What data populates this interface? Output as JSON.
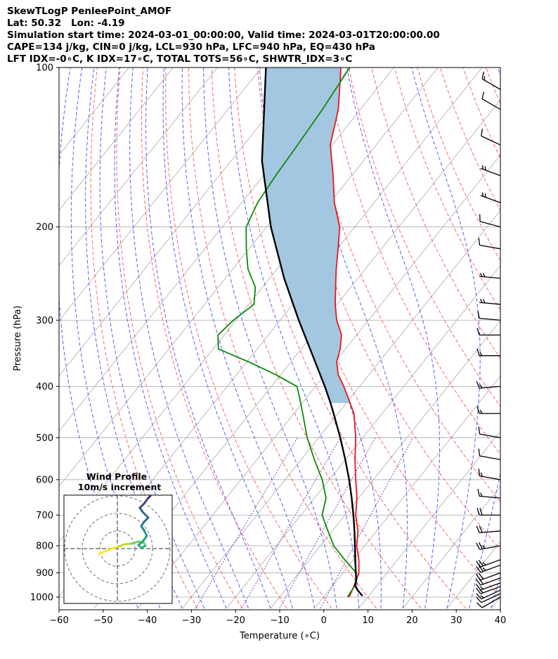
{
  "header": {
    "line1": "SkewTLogP PenleePoint_AMOF",
    "line2": "Lat: 50.32   Lon: -4.19",
    "line3": "Simulation start time: 2024-03-01_00:00:00, Valid time: 2024-03-01T20:00:00.00",
    "line4": "CAPE=134 j/kg, CIN=0 j/kg, LCL=930 hPa, LFC=940 hPa, EQ=430 hPa",
    "line5": "LFT IDX=-0∘C, K IDX=17∘C, TOTAL TOTS=56∘C, SHWTR_IDX=3∘C"
  },
  "colors": {
    "temperature": "#e8151b",
    "dewpoint": "#0b8a0b",
    "parcel": "#000000",
    "cape_fill": "#a3c7e0",
    "dry_adiabat": "#ff6666",
    "moist_adiabat": "#5560ff",
    "isotherm": "#aaaaaa",
    "mixing_ratio": "#8844bb"
  },
  "chart_data": [
    {
      "type": "line",
      "title": "",
      "xlabel": "Temperature (∘C)",
      "ylabel": "Pressure (hPa)",
      "xlim": [
        -60,
        40
      ],
      "ylim": [
        1040,
        100
      ],
      "xticks": [
        "−60",
        "−50",
        "−40",
        "−30",
        "−20",
        "−10",
        "0",
        "10",
        "20",
        "30",
        "40"
      ],
      "xtick_values": [
        -60,
        -50,
        -40,
        -30,
        -20,
        -10,
        0,
        10,
        20,
        30,
        40
      ],
      "yticks": [
        "100",
        "200",
        "300",
        "400",
        "500",
        "600",
        "700",
        "800",
        "900",
        "1000"
      ],
      "ytick_values": [
        100,
        200,
        300,
        400,
        500,
        600,
        700,
        800,
        900,
        1000
      ],
      "grid": true,
      "series": [
        {
          "name": "temperature",
          "points": [
            [
              1000,
              5.8
            ],
            [
              950,
              4.8
            ],
            [
              900,
              3.6
            ],
            [
              850,
              1.2
            ],
            [
              800,
              -1.8
            ],
            [
              750,
              -4.2
            ],
            [
              700,
              -7.6
            ],
            [
              650,
              -10.4
            ],
            [
              600,
              -14.0
            ],
            [
              550,
              -17.8
            ],
            [
              500,
              -21.6
            ],
            [
              450,
              -26.4
            ],
            [
              420,
              -30.6
            ],
            [
              400,
              -33.6
            ],
            [
              380,
              -37.0
            ],
            [
              360,
              -39.6
            ],
            [
              340,
              -41.2
            ],
            [
              320,
              -43.4
            ],
            [
              300,
              -47.2
            ],
            [
              280,
              -50.4
            ],
            [
              260,
              -53.4
            ],
            [
              240,
              -56.6
            ],
            [
              220,
              -59.8
            ],
            [
              200,
              -63.4
            ],
            [
              180,
              -69.0
            ],
            [
              160,
              -74.2
            ],
            [
              140,
              -80.4
            ],
            [
              120,
              -85.0
            ],
            [
              100,
              -92.0
            ]
          ]
        },
        {
          "name": "dewpoint",
          "points": [
            [
              1000,
              5.4
            ],
            [
              950,
              5.0
            ],
            [
              900,
              3.0
            ],
            [
              850,
              -2.0
            ],
            [
              800,
              -7.0
            ],
            [
              750,
              -11.0
            ],
            [
              700,
              -15.2
            ],
            [
              650,
              -17.4
            ],
            [
              600,
              -21.6
            ],
            [
              550,
              -27.0
            ],
            [
              500,
              -32.6
            ],
            [
              450,
              -38.0
            ],
            [
              420,
              -41.6
            ],
            [
              400,
              -44.2
            ],
            [
              380,
              -51.2
            ],
            [
              360,
              -59.4
            ],
            [
              340,
              -68.8
            ],
            [
              320,
              -71.4
            ],
            [
              300,
              -70.6
            ],
            [
              280,
              -68.8
            ],
            [
              260,
              -71.6
            ],
            [
              240,
              -76.6
            ],
            [
              220,
              -80.6
            ],
            [
              200,
              -84.6
            ],
            [
              180,
              -86.4
            ],
            [
              160,
              -87.2
            ],
            [
              140,
              -87.8
            ],
            [
              120,
              -88.6
            ],
            [
              100,
              -90.0
            ]
          ]
        },
        {
          "name": "parcel",
          "points": [
            [
              995,
              8.6
            ],
            [
              970,
              6.4
            ],
            [
              950,
              5.0
            ],
            [
              930,
              4.4
            ],
            [
              900,
              2.9
            ],
            [
              850,
              0.4
            ],
            [
              800,
              -2.2
            ],
            [
              750,
              -5.0
            ],
            [
              700,
              -8.1
            ],
            [
              650,
              -11.6
            ],
            [
              600,
              -15.5
            ],
            [
              550,
              -20.0
            ],
            [
              500,
              -25.1
            ],
            [
              450,
              -31.0
            ],
            [
              430,
              -33.6
            ],
            [
              400,
              -37.9
            ],
            [
              350,
              -46.2
            ],
            [
              300,
              -55.8
            ],
            [
              250,
              -66.7
            ],
            [
              200,
              -79.0
            ],
            [
              150,
              -93.0
            ],
            [
              100,
              -109.0
            ]
          ]
        }
      ],
      "wind_barbs": {
        "pressures": [
          1000,
          985,
          970,
          955,
          940,
          920,
          900,
          870,
          850,
          800,
          750,
          700,
          650,
          600,
          550,
          500,
          450,
          400,
          350,
          320,
          300,
          280,
          250,
          220,
          200,
          180,
          160,
          140,
          120,
          110
        ],
        "speed_kt": [
          10,
          10,
          15,
          15,
          15,
          20,
          20,
          25,
          25,
          25,
          20,
          20,
          15,
          15,
          10,
          10,
          15,
          15,
          15,
          10,
          10,
          5,
          5,
          10,
          10,
          5,
          5,
          10,
          10,
          15
        ],
        "direction_deg": [
          240,
          245,
          245,
          250,
          250,
          250,
          250,
          250,
          250,
          260,
          265,
          270,
          275,
          280,
          280,
          280,
          270,
          265,
          270,
          270,
          275,
          275,
          275,
          280,
          285,
          290,
          290,
          295,
          300,
          300
        ]
      }
    },
    {
      "type": "scatter",
      "title": "Wind Profile",
      "subtitle": "10m/s increment",
      "ring_step_ms": 10,
      "rings": 3,
      "colormap": "viridis",
      "hodograph_uv_ms": [
        [
          -3.8,
          -0.6
        ],
        [
          -3.0,
          -0.2
        ],
        [
          -2.0,
          0.2
        ],
        [
          -1.0,
          0.5
        ],
        [
          -0.2,
          0.8
        ],
        [
          0.8,
          0.9
        ],
        [
          1.8,
          1.2
        ],
        [
          2.6,
          1.0
        ],
        [
          2.8,
          0.6
        ],
        [
          2.2,
          0.3
        ],
        [
          1.8,
          0.7
        ],
        [
          2.4,
          1.2
        ],
        [
          3.0,
          2.0
        ],
        [
          2.6,
          2.8
        ],
        [
          2.2,
          3.4
        ],
        [
          2.6,
          4.0
        ],
        [
          3.2,
          4.6
        ],
        [
          2.4,
          5.4
        ],
        [
          2.0,
          6.0
        ],
        [
          2.6,
          6.6
        ],
        [
          3.2,
          7.4
        ],
        [
          3.8,
          8.0
        ],
        [
          3.4,
          8.8
        ],
        [
          2.4,
          9.0
        ],
        [
          1.6,
          9.2
        ],
        [
          2.2,
          8.4
        ]
      ]
    }
  ]
}
